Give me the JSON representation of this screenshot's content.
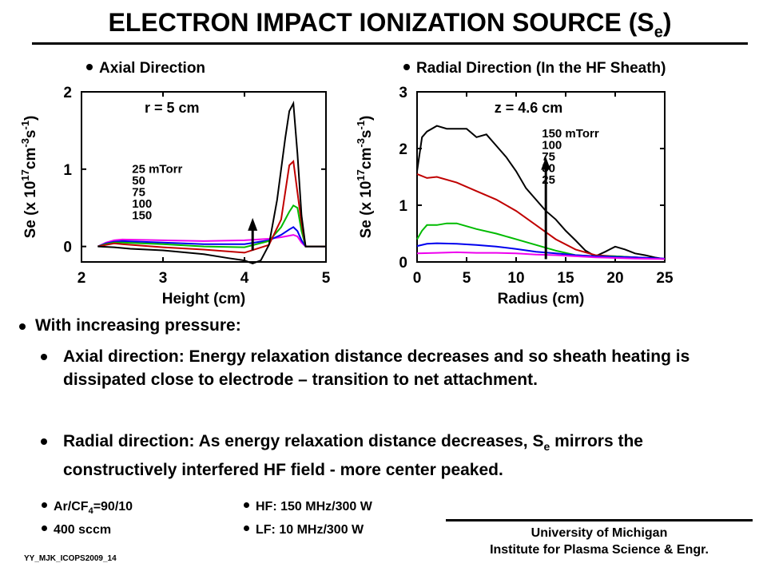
{
  "title": {
    "main": "ELECTRON IMPACT IONIZATION SOURCE (S",
    "sub": "e",
    "close": ")"
  },
  "panels": {
    "left_heading": "Axial Direction",
    "right_heading": "Radial Direction (In the HF Sheath)"
  },
  "colors": {
    "black": "#000000",
    "red": "#c00000",
    "green": "#00bb00",
    "blue": "#0000ee",
    "magenta": "#ee00ee"
  },
  "chart_data": [
    {
      "type": "line",
      "xlabel": "Height (cm)",
      "ylabel": {
        "pre": "Se (x 10",
        "sup1": "17",
        "mid": "cm",
        "sup2": "-3",
        "s": "s",
        "sup3": "-1",
        "post": ")"
      },
      "xlim": [
        2,
        5
      ],
      "ylim": [
        -0.2,
        2
      ],
      "xticks": [
        "2",
        "3",
        "4",
        "5"
      ],
      "yticks": [
        "0",
        "1",
        "2"
      ],
      "annotation": "r = 5 cm",
      "legend": [
        "25 mTorr",
        "50",
        "75",
        "100",
        "150"
      ],
      "arrow": {
        "x": 4.1,
        "y_from": -0.05,
        "y_to": 0.37
      },
      "series": [
        {
          "name": "25 mTorr",
          "color": "magenta",
          "x": [
            2.2,
            2.3,
            2.4,
            2.5,
            3.0,
            3.5,
            4.0,
            4.3,
            4.45,
            4.55,
            4.6,
            4.65,
            4.7,
            4.75,
            5.0
          ],
          "y": [
            0.0,
            0.05,
            0.08,
            0.09,
            0.08,
            0.07,
            0.08,
            0.1,
            0.12,
            0.14,
            0.15,
            0.13,
            0.05,
            0.0,
            0.0
          ]
        },
        {
          "name": "50",
          "color": "blue",
          "x": [
            2.2,
            2.3,
            2.4,
            2.5,
            3.0,
            3.5,
            4.0,
            4.3,
            4.45,
            4.55,
            4.6,
            4.65,
            4.7,
            4.75,
            5.0
          ],
          "y": [
            0.0,
            0.04,
            0.06,
            0.07,
            0.05,
            0.03,
            0.03,
            0.08,
            0.15,
            0.22,
            0.25,
            0.2,
            0.08,
            0.0,
            0.0
          ]
        },
        {
          "name": "75",
          "color": "green",
          "x": [
            2.2,
            2.3,
            2.4,
            2.5,
            3.0,
            3.5,
            4.0,
            4.3,
            4.45,
            4.55,
            4.6,
            4.65,
            4.7,
            4.75,
            5.0
          ],
          "y": [
            0.0,
            0.03,
            0.05,
            0.05,
            0.03,
            0.0,
            -0.01,
            0.07,
            0.25,
            0.45,
            0.53,
            0.5,
            0.2,
            0.0,
            0.0
          ]
        },
        {
          "name": "100",
          "color": "red",
          "x": [
            2.2,
            2.3,
            2.4,
            2.5,
            3.0,
            3.5,
            4.0,
            4.3,
            4.45,
            4.5,
            4.55,
            4.6,
            4.65,
            4.7,
            4.75,
            5.0
          ],
          "y": [
            0.0,
            0.02,
            0.04,
            0.03,
            -0.01,
            -0.04,
            -0.08,
            0.02,
            0.35,
            0.7,
            1.05,
            1.1,
            0.7,
            0.3,
            0.0,
            0.0
          ]
        },
        {
          "name": "150",
          "color": "black",
          "x": [
            2.2,
            2.4,
            2.6,
            3.0,
            3.5,
            3.8,
            4.0,
            4.1,
            4.2,
            4.3,
            4.4,
            4.5,
            4.55,
            4.6,
            4.65,
            4.7,
            4.75,
            5.0
          ],
          "y": [
            0.0,
            -0.01,
            -0.03,
            -0.05,
            -0.1,
            -0.15,
            -0.18,
            -0.22,
            -0.18,
            0.02,
            0.6,
            1.4,
            1.75,
            1.85,
            1.2,
            0.4,
            0.0,
            0.0
          ]
        }
      ]
    },
    {
      "type": "line",
      "xlabel": "Radius (cm)",
      "ylabel": {
        "pre": "Se (x 10",
        "sup1": "17",
        "mid": "cm",
        "sup2": "-3",
        "s": "s",
        "sup3": "-1",
        "post": ")"
      },
      "xlim": [
        0,
        25
      ],
      "ylim": [
        0,
        3
      ],
      "xticks": [
        "0",
        "5",
        "10",
        "15",
        "20",
        "25"
      ],
      "yticks": [
        "0",
        "1",
        "2",
        "3"
      ],
      "annotation": "z = 4.6 cm",
      "legend": [
        "150 mTorr",
        "100",
        "75",
        "50",
        "25"
      ],
      "arrow": {
        "x": 13,
        "y_from": 0.05,
        "y_to": 1.85
      },
      "series": [
        {
          "name": "150 mTorr",
          "color": "black",
          "x": [
            0,
            0.5,
            1,
            2,
            3,
            5,
            6,
            7,
            8,
            9,
            10,
            11,
            12,
            13,
            14,
            15,
            16,
            17,
            18,
            19,
            20,
            21,
            22,
            23,
            24,
            25
          ],
          "y": [
            1.6,
            2.2,
            2.3,
            2.4,
            2.35,
            2.35,
            2.2,
            2.25,
            2.05,
            1.85,
            1.6,
            1.3,
            1.1,
            0.9,
            0.75,
            0.55,
            0.38,
            0.2,
            0.1,
            0.18,
            0.27,
            0.22,
            0.15,
            0.12,
            0.08,
            0.05
          ]
        },
        {
          "name": "100",
          "color": "red",
          "x": [
            0,
            1,
            2,
            4,
            6,
            8,
            10,
            12,
            14,
            16,
            18,
            20,
            22,
            25
          ],
          "y": [
            1.55,
            1.48,
            1.5,
            1.4,
            1.25,
            1.1,
            0.9,
            0.65,
            0.4,
            0.22,
            0.12,
            0.1,
            0.08,
            0.05
          ]
        },
        {
          "name": "75",
          "color": "green",
          "x": [
            0,
            0.5,
            1,
            2,
            3,
            4,
            6,
            8,
            10,
            12,
            14,
            16,
            18,
            20,
            22,
            25
          ],
          "y": [
            0.4,
            0.55,
            0.65,
            0.65,
            0.68,
            0.68,
            0.58,
            0.5,
            0.4,
            0.3,
            0.2,
            0.12,
            0.1,
            0.1,
            0.08,
            0.05
          ]
        },
        {
          "name": "50",
          "color": "blue",
          "x": [
            0,
            1,
            2,
            4,
            6,
            8,
            10,
            12,
            14,
            16,
            18,
            20,
            22,
            25
          ],
          "y": [
            0.28,
            0.32,
            0.33,
            0.32,
            0.3,
            0.27,
            0.23,
            0.18,
            0.15,
            0.12,
            0.1,
            0.09,
            0.08,
            0.06
          ]
        },
        {
          "name": "25",
          "color": "magenta",
          "x": [
            0,
            2,
            4,
            6,
            8,
            10,
            12,
            14,
            16,
            18,
            20,
            22,
            25
          ],
          "y": [
            0.15,
            0.16,
            0.17,
            0.16,
            0.16,
            0.15,
            0.13,
            0.12,
            0.1,
            0.08,
            0.07,
            0.06,
            0.05
          ]
        }
      ]
    }
  ],
  "bullets": {
    "main": "With increasing pressure:",
    "axial": "Axial direction: Energy relaxation distance decreases and so sheath heating is dissipated close to electrode – transition to net attachment.",
    "radial_pre": "Radial direction: As energy relaxation distance decreases, S",
    "radial_sub": "e",
    "radial_post": " mirrors the constructively interfered HF field - more center peaked."
  },
  "conditions": {
    "gas_pre": "Ar/CF",
    "gas_sub": "4",
    "gas_post": "=90/10",
    "flow": "400 sccm",
    "hf": "HF: 150 MHz/300 W",
    "lf": "LF: 10 MHz/300 W"
  },
  "affiliation": {
    "line1": "University of Michigan",
    "line2": "Institute for Plasma Science & Engr."
  },
  "footer": "YY_MJK_ICOPS2009_14"
}
